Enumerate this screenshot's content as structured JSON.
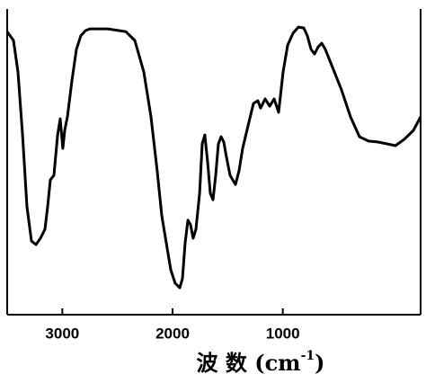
{
  "chart_data": {
    "type": "line",
    "xlabel": [
      "波 数 (cm",
      "-1",
      ")"
    ],
    "xlim": [
      3500,
      -250
    ],
    "xticks": [
      3000,
      2000,
      1000
    ],
    "ylim": [
      0,
      100
    ],
    "grid": false,
    "series": [
      {
        "color": "#000000",
        "x": [
          3500,
          3443,
          3402,
          3361,
          3321,
          3280,
          3239,
          3198,
          3158,
          3133,
          3109,
          3076,
          3043,
          3019,
          2995,
          2978,
          2954,
          2913,
          2872,
          2832,
          2791,
          2750,
          2587,
          2424,
          2342,
          2261,
          2196,
          2139,
          2098,
          2057,
          2016,
          1976,
          1935,
          1910,
          1886,
          1861,
          1837,
          1813,
          1788,
          1755,
          1731,
          1707,
          1682,
          1658,
          1633,
          1609,
          1584,
          1560,
          1535,
          1511,
          1478,
          1429,
          1397,
          1364,
          1315,
          1266,
          1226,
          1201,
          1160,
          1119,
          1079,
          1038,
          997,
          956,
          907,
          859,
          810,
          777,
          744,
          712,
          679,
          647,
          614,
          549,
          467,
          386,
          304,
          223,
          141,
          60,
          -22,
          -103,
          -185,
          -250
        ],
        "values": [
          92.6,
          89.7,
          79.4,
          58.8,
          35.3,
          24.1,
          22.9,
          25,
          27.9,
          35.3,
          44.1,
          45.6,
          58.8,
          64.1,
          54.4,
          60.3,
          64.7,
          76.5,
          86.8,
          91.2,
          92.9,
          93.5,
          93.5,
          92.6,
          89.7,
          79.4,
          64.7,
          47.1,
          32.4,
          23.5,
          14.7,
          10.3,
          8.8,
          11.8,
          23.5,
          30.9,
          29.4,
          25,
          27.9,
          39.7,
          55.9,
          58.8,
          50,
          39.7,
          37.6,
          45.6,
          55.9,
          58.2,
          56.5,
          51.5,
          45.6,
          42.6,
          47.1,
          54.4,
          61.8,
          69.1,
          70,
          67.6,
          70.6,
          68.2,
          70.6,
          66.2,
          79.4,
          88.2,
          92.1,
          94.1,
          93.8,
          91.2,
          86.8,
          85.3,
          87.6,
          88.8,
          86.8,
          80.9,
          73.5,
          64.7,
          58.2,
          56.8,
          56.5,
          55.9,
          55.3,
          57.4,
          60.3,
          64.7
        ]
      }
    ]
  }
}
